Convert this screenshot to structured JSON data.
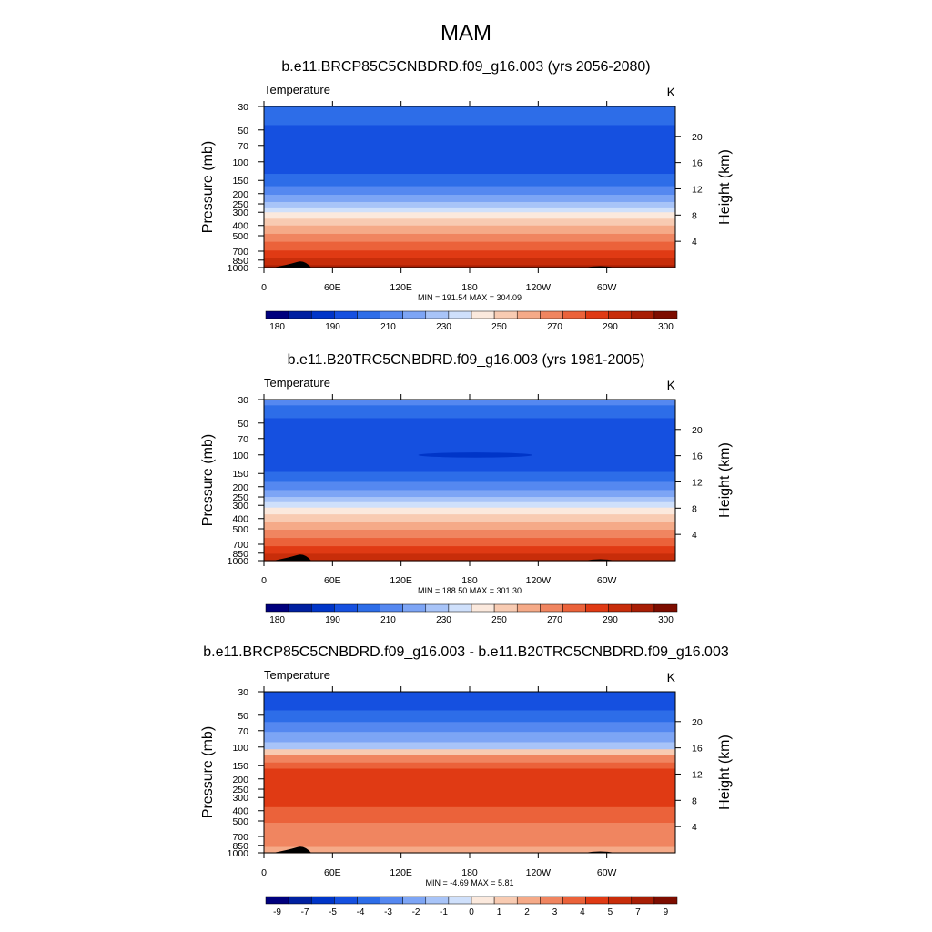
{
  "figure": {
    "title": "MAM",
    "y_left_label": "Pressure (mb)",
    "y_right_label": "Height (km)",
    "x_ticks": [
      "0",
      "60E",
      "120E",
      "180",
      "120W",
      "60W"
    ],
    "p_ticks": [
      "30",
      "50",
      "70",
      "100",
      "150",
      "200",
      "250",
      "300",
      "400",
      "500",
      "700",
      "850",
      "1000"
    ],
    "h_ticks": [
      "20",
      "16",
      "12",
      "8",
      "4"
    ]
  },
  "chart_data": [
    {
      "type": "heatmap",
      "title": "b.e11.BRCP85C5CNBDRD.f09_g16.003 (yrs 2056-2080)",
      "left_string": "Temperature",
      "right_string": "K",
      "stats": "MIN = 191.54  MAX = 304.09",
      "x": [
        "0",
        "60E",
        "120E",
        "180",
        "120W",
        "60W"
      ],
      "y_pressure_mb": [
        30,
        50,
        70,
        100,
        150,
        200,
        250,
        300,
        400,
        500,
        700,
        850,
        1000
      ],
      "min": 191.54,
      "max": 304.09,
      "colorbar": {
        "labels": [
          "180",
          "190",
          "210",
          "230",
          "250",
          "270",
          "290",
          "300"
        ],
        "colors": [
          "#00007d",
          "#0020a0",
          "#0035c8",
          "#1550e0",
          "#2d6de8",
          "#5588f0",
          "#7da5f5",
          "#a8c4f8",
          "#cfe0fb",
          "#fbe9dd",
          "#f8cbb2",
          "#f5aa88",
          "#f08560",
          "#eb623a",
          "#e03a14",
          "#c82d0a",
          "#a81e05",
          "#7d0d00"
        ]
      },
      "bands_top_to_bottom": [
        {
          "p": [
            30,
            45
          ],
          "color": "#2d6de8"
        },
        {
          "p": [
            45,
            130
          ],
          "color": "#1550e0"
        },
        {
          "p": [
            130,
            170
          ],
          "color": "#2d6de8"
        },
        {
          "p": [
            170,
            205
          ],
          "color": "#5588f0"
        },
        {
          "p": [
            205,
            240
          ],
          "color": "#7da5f5"
        },
        {
          "p": [
            240,
            270
          ],
          "color": "#a8c4f8"
        },
        {
          "p": [
            270,
            300
          ],
          "color": "#cfe0fb"
        },
        {
          "p": [
            300,
            345
          ],
          "color": "#fbe9dd"
        },
        {
          "p": [
            345,
            400
          ],
          "color": "#f8cbb2"
        },
        {
          "p": [
            400,
            480
          ],
          "color": "#f5aa88"
        },
        {
          "p": [
            480,
            570
          ],
          "color": "#f08560"
        },
        {
          "p": [
            570,
            690
          ],
          "color": "#eb623a"
        },
        {
          "p": [
            690,
            820
          ],
          "color": "#e03a14"
        },
        {
          "p": [
            820,
            950
          ],
          "color": "#c82d0a"
        },
        {
          "p": [
            950,
            1000
          ],
          "color": "#a81e05"
        }
      ],
      "features": []
    },
    {
      "type": "heatmap",
      "title": "b.e11.B20TRC5CNBDRD.f09_g16.003 (yrs 1981-2005)",
      "left_string": "Temperature",
      "right_string": "K",
      "stats": "MIN = 188.50  MAX = 301.30",
      "x": [
        "0",
        "60E",
        "120E",
        "180",
        "120W",
        "60W"
      ],
      "y_pressure_mb": [
        30,
        50,
        70,
        100,
        150,
        200,
        250,
        300,
        400,
        500,
        700,
        850,
        1000
      ],
      "min": 188.5,
      "max": 301.3,
      "colorbar": {
        "labels": [
          "180",
          "190",
          "210",
          "230",
          "250",
          "270",
          "290",
          "300"
        ],
        "colors": [
          "#00007d",
          "#0020a0",
          "#0035c8",
          "#1550e0",
          "#2d6de8",
          "#5588f0",
          "#7da5f5",
          "#a8c4f8",
          "#cfe0fb",
          "#fbe9dd",
          "#f8cbb2",
          "#f5aa88",
          "#f08560",
          "#eb623a",
          "#e03a14",
          "#c82d0a",
          "#a81e05",
          "#7d0d00"
        ]
      },
      "bands_top_to_bottom": [
        {
          "p": [
            30,
            34
          ],
          "color": "#5588f0"
        },
        {
          "p": [
            34,
            45
          ],
          "color": "#2d6de8"
        },
        {
          "p": [
            45,
            145
          ],
          "color": "#1550e0"
        },
        {
          "p": [
            145,
            180
          ],
          "color": "#2d6de8"
        },
        {
          "p": [
            180,
            215
          ],
          "color": "#5588f0"
        },
        {
          "p": [
            215,
            250
          ],
          "color": "#7da5f5"
        },
        {
          "p": [
            250,
            280
          ],
          "color": "#a8c4f8"
        },
        {
          "p": [
            280,
            315
          ],
          "color": "#cfe0fb"
        },
        {
          "p": [
            315,
            365
          ],
          "color": "#fbe9dd"
        },
        {
          "p": [
            365,
            430
          ],
          "color": "#f8cbb2"
        },
        {
          "p": [
            430,
            510
          ],
          "color": "#f5aa88"
        },
        {
          "p": [
            510,
            610
          ],
          "color": "#f08560"
        },
        {
          "p": [
            610,
            730
          ],
          "color": "#eb623a"
        },
        {
          "p": [
            730,
            860
          ],
          "color": "#e03a14"
        },
        {
          "p": [
            860,
            1000
          ],
          "color": "#c82d0a"
        }
      ],
      "features": [
        {
          "kind": "cold-core",
          "lon": [
            135,
            235
          ],
          "p": [
            95,
            106
          ],
          "color": "#0035c8"
        }
      ]
    },
    {
      "type": "heatmap",
      "title": "b.e11.BRCP85C5CNBDRD.f09_g16.003 - b.e11.B20TRC5CNBDRD.f09_g16.003",
      "left_string": "Temperature",
      "right_string": "K",
      "stats": "MIN =  -4.69  MAX =   5.81",
      "x": [
        "0",
        "60E",
        "120E",
        "180",
        "120W",
        "60W"
      ],
      "y_pressure_mb": [
        30,
        50,
        70,
        100,
        150,
        200,
        250,
        300,
        400,
        500,
        700,
        850,
        1000
      ],
      "min": -4.69,
      "max": 5.81,
      "colorbar": {
        "labels": [
          "-9",
          "-7",
          "-5",
          "-4",
          "-3",
          "-2",
          "-1",
          "0",
          "1",
          "2",
          "3",
          "4",
          "5",
          "7",
          "9"
        ],
        "colors": [
          "#00007d",
          "#0020a0",
          "#0035c8",
          "#1550e0",
          "#2d6de8",
          "#5588f0",
          "#7da5f5",
          "#a8c4f8",
          "#cfe0fb",
          "#fbe9dd",
          "#f8cbb2",
          "#f5aa88",
          "#f08560",
          "#eb623a",
          "#e03a14",
          "#c82d0a",
          "#a81e05",
          "#7d0d00"
        ]
      },
      "bands_top_to_bottom": [
        {
          "p": [
            30,
            45
          ],
          "color": "#1550e0"
        },
        {
          "p": [
            45,
            58
          ],
          "color": "#2d6de8"
        },
        {
          "p": [
            58,
            72
          ],
          "color": "#5588f0"
        },
        {
          "p": [
            72,
            90
          ],
          "color": "#7da5f5"
        },
        {
          "p": [
            90,
            105
          ],
          "color": "#a8c4f8"
        },
        {
          "p": [
            105,
            120
          ],
          "color": "#f8cbb2"
        },
        {
          "p": [
            120,
            140
          ],
          "color": "#f08560"
        },
        {
          "p": [
            140,
            160
          ],
          "color": "#eb623a"
        },
        {
          "p": [
            160,
            370
          ],
          "color": "#e03a14"
        },
        {
          "p": [
            370,
            520
          ],
          "color": "#eb623a"
        },
        {
          "p": [
            520,
            880
          ],
          "color": "#f08560"
        },
        {
          "p": [
            880,
            1000
          ],
          "color": "#f5aa88"
        }
      ],
      "features": []
    }
  ]
}
